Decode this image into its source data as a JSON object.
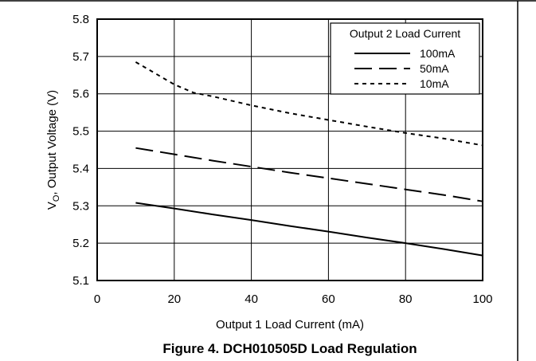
{
  "chart_data": {
    "type": "line",
    "title": "Figure 4. DCH010505D Load Regulation",
    "xlabel": "Output 1 Load Current (mA)",
    "ylabel_main": "V",
    "ylabel_sub": "O",
    "ylabel_rest": ", Output Voltage (V)",
    "xlim": [
      0,
      100
    ],
    "ylim": [
      5.1,
      5.8
    ],
    "x_ticks": [
      0,
      20,
      40,
      60,
      80,
      100
    ],
    "y_ticks": [
      "5.1",
      "5.2",
      "5.3",
      "5.4",
      "5.5",
      "5.6",
      "5.7",
      "5.8"
    ],
    "grid": true,
    "legend_title": "Output 2 Load Current",
    "legend_position": "top-right",
    "series": [
      {
        "name": "100mA",
        "dash": "solid",
        "x": [
          10,
          20,
          30,
          40,
          50,
          60,
          70,
          80,
          90,
          100
        ],
        "y": [
          5.308,
          5.293,
          5.277,
          5.262,
          5.246,
          5.231,
          5.215,
          5.2,
          5.184,
          5.167
        ]
      },
      {
        "name": "50mA",
        "dash": "dashed",
        "x": [
          10,
          20,
          30,
          40,
          50,
          60,
          70,
          80,
          90,
          100
        ],
        "y": [
          5.455,
          5.438,
          5.421,
          5.405,
          5.389,
          5.374,
          5.359,
          5.344,
          5.329,
          5.312
        ]
      },
      {
        "name": "10mA",
        "dash": "dotted",
        "x": [
          10,
          15,
          20,
          25,
          30,
          40,
          50,
          60,
          70,
          80,
          90,
          100
        ],
        "y": [
          5.685,
          5.655,
          5.625,
          5.603,
          5.593,
          5.569,
          5.548,
          5.53,
          5.512,
          5.495,
          5.48,
          5.462
        ]
      }
    ]
  }
}
